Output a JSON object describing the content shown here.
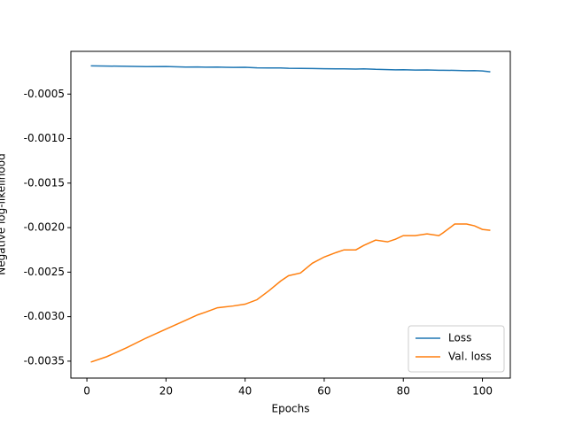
{
  "chart_data": {
    "type": "line",
    "xlabel": "Epochs",
    "ylabel": "Negative log-likelihood",
    "x": [
      1,
      5,
      10,
      15,
      20,
      25,
      28,
      30,
      33,
      37,
      40,
      43,
      46,
      49,
      51,
      54,
      57,
      60,
      63,
      65,
      68,
      70,
      73,
      76,
      78,
      80,
      83,
      86,
      89,
      90,
      93,
      96,
      98,
      100,
      102
    ],
    "series": [
      {
        "name": "Loss",
        "color": "#1f77b4",
        "values": [
          -0.000183,
          -0.000185,
          -0.000188,
          -0.000192,
          -0.00019,
          -0.000196,
          -0.000195,
          -0.000198,
          -0.000197,
          -0.0002,
          -0.000199,
          -0.000205,
          -0.000206,
          -0.000206,
          -0.00021,
          -0.000212,
          -0.000213,
          -0.000215,
          -0.000216,
          -0.000216,
          -0.000219,
          -0.000216,
          -0.000222,
          -0.000225,
          -0.000228,
          -0.000226,
          -0.00023,
          -0.000229,
          -0.000232,
          -0.000232,
          -0.000234,
          -0.000237,
          -0.000236,
          -0.00024,
          -0.00025
        ]
      },
      {
        "name": "Val. loss",
        "color": "#ff7f0e",
        "values": [
          -0.00351,
          -0.00345,
          -0.00335,
          -0.00324,
          -0.00314,
          -0.00304,
          -0.00298,
          -0.00295,
          -0.0029,
          -0.00288,
          -0.00286,
          -0.00281,
          -0.00271,
          -0.0026,
          -0.00254,
          -0.00251,
          -0.0024,
          -0.00233,
          -0.00228,
          -0.00225,
          -0.00225,
          -0.0022,
          -0.00214,
          -0.00216,
          -0.00213,
          -0.00209,
          -0.00209,
          -0.00207,
          -0.00209,
          -0.00206,
          -0.00196,
          -0.00196,
          -0.00198,
          -0.00202,
          -0.00203
        ]
      }
    ],
    "xlim": [
      -4.05,
      107.05
    ],
    "ylim": [
      -0.00369,
      -2e-05
    ],
    "xticks": [
      0,
      20,
      40,
      60,
      80,
      100
    ],
    "yticks": [
      {
        "value": -0.0035,
        "label": "-0.0035"
      },
      {
        "value": -0.003,
        "label": "-0.0030"
      },
      {
        "value": -0.0025,
        "label": "-0.0025"
      },
      {
        "value": -0.002,
        "label": "-0.0020"
      },
      {
        "value": -0.0015,
        "label": "-0.0015"
      },
      {
        "value": -0.001,
        "label": "-0.0010"
      },
      {
        "value": -0.0005,
        "label": "-0.0005"
      }
    ],
    "legend": "lower right"
  }
}
